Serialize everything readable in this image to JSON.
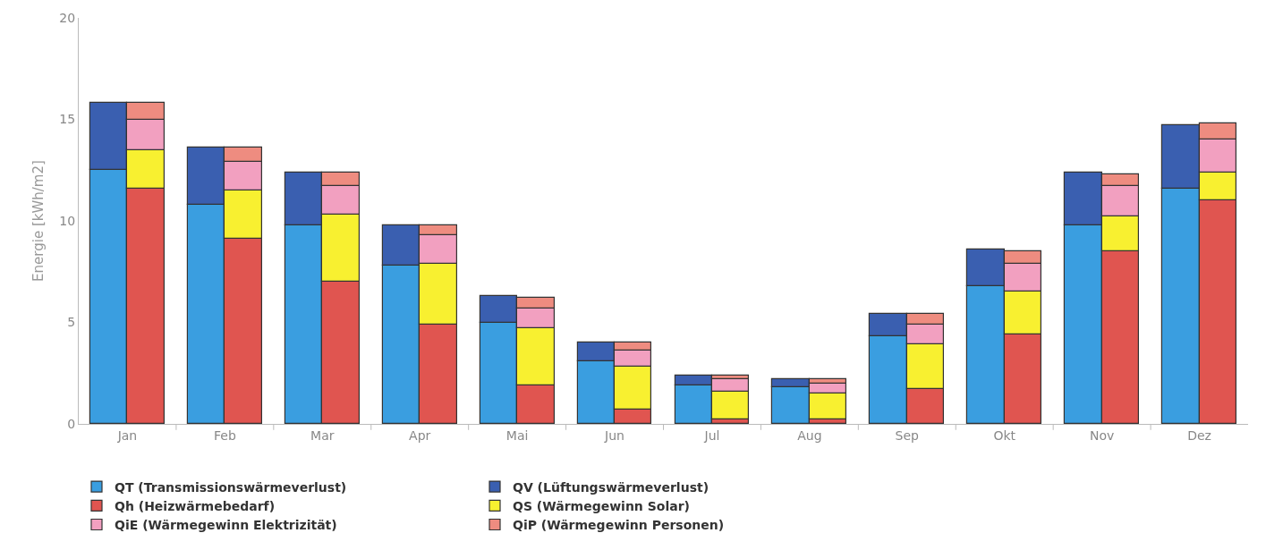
{
  "chart_data": {
    "type": "bar",
    "ylabel": "Energie [kWh/m2]",
    "categories": [
      "Jan",
      "Feb",
      "Mar",
      "Apr",
      "Mai",
      "Jun",
      "Jul",
      "Aug",
      "Sep",
      "Okt",
      "Nov",
      "Dez"
    ],
    "ylim": [
      0,
      20
    ],
    "yticks": [
      0,
      5,
      10,
      15,
      20
    ],
    "grid": false,
    "legend": "bottom",
    "series": [
      {
        "name": "QT (Transmissionswärmeverlust)",
        "color": "#3a9ee0",
        "base": [
          0,
          0,
          0,
          0,
          0,
          0,
          0,
          0,
          0,
          0,
          0,
          0
        ],
        "values": [
          12.5,
          10.8,
          9.8,
          7.8,
          5.0,
          3.1,
          1.9,
          1.8,
          4.3,
          6.8,
          9.8,
          11.6
        ]
      },
      {
        "name": "QV (Lüftungswärmeverlust)",
        "color": "#3a5fb0",
        "base": [
          12.5,
          10.8,
          9.8,
          7.8,
          5.0,
          3.1,
          1.9,
          1.8,
          4.3,
          6.8,
          9.8,
          11.6
        ],
        "values": [
          3.3,
          2.8,
          2.6,
          2.0,
          1.3,
          0.9,
          0.5,
          0.4,
          1.1,
          1.8,
          2.6,
          3.1
        ]
      },
      {
        "name": "Qh (Heizwärmebedarf)",
        "color": "#e05550",
        "base": [
          0,
          0,
          0,
          0,
          0,
          0,
          0,
          0,
          0,
          0,
          0,
          0
        ],
        "values": [
          11.6,
          9.1,
          7.0,
          4.9,
          1.9,
          0.7,
          0.2,
          0.2,
          1.7,
          4.4,
          8.5,
          11.0
        ]
      },
      {
        "name": "QS (Wärmegewinn Solar)",
        "color": "#f8f030",
        "base": [
          11.6,
          9.1,
          7.0,
          4.9,
          1.9,
          0.7,
          0.2,
          0.2,
          1.7,
          4.4,
          8.5,
          11.0
        ],
        "values": [
          1.9,
          2.4,
          3.3,
          3.0,
          2.8,
          2.1,
          1.4,
          1.3,
          2.2,
          2.1,
          1.7,
          1.4
        ]
      },
      {
        "name": "QiE (Wärmegewinn Elektrizität)",
        "color": "#f2a0c0",
        "base": [
          13.5,
          11.5,
          10.3,
          7.9,
          4.7,
          2.8,
          1.6,
          1.5,
          3.9,
          6.5,
          10.2,
          12.4
        ],
        "values": [
          1.5,
          1.4,
          1.4,
          1.4,
          1.0,
          0.8,
          0.6,
          0.5,
          1.0,
          1.4,
          1.5,
          1.6
        ]
      },
      {
        "name": "QiP (Wärmegewinn Personen)",
        "color": "#ee8c80",
        "base": [
          15.0,
          12.9,
          11.7,
          9.3,
          5.7,
          3.6,
          2.2,
          2.0,
          4.9,
          7.9,
          11.7,
          14.0
        ],
        "values": [
          0.8,
          0.7,
          0.7,
          0.5,
          0.5,
          0.4,
          0.2,
          0.2,
          0.5,
          0.6,
          0.6,
          0.8
        ]
      }
    ]
  }
}
